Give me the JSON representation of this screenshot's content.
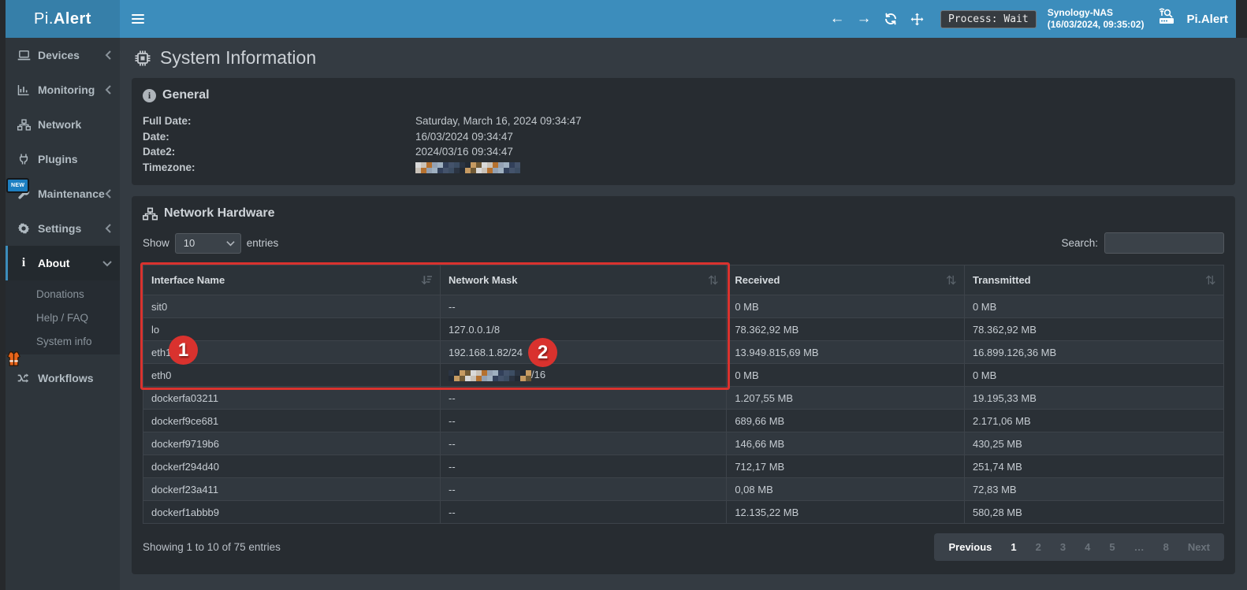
{
  "colors": {
    "navbar_blue": "#3c8dbc",
    "annotation_red": "#d9322e"
  },
  "navbar": {
    "brand_prefix": "Pi.",
    "brand_bold": "Alert",
    "process_badge": "Process: Wait",
    "host_name": "Synology-NAS",
    "host_timestamp": "(16/03/2024, 09:35:02)",
    "right_brand": "Pi.Alert"
  },
  "sidebar": {
    "items": [
      {
        "label": "Devices"
      },
      {
        "label": "Monitoring"
      },
      {
        "label": "Network"
      },
      {
        "label": "Plugins"
      },
      {
        "label": "Maintenance",
        "badge": "NEW"
      },
      {
        "label": "Settings"
      },
      {
        "label": "About"
      },
      {
        "label": "Workflows"
      }
    ],
    "about_submenu": [
      {
        "label": "Donations"
      },
      {
        "label": "Help / FAQ"
      },
      {
        "label": "System info"
      }
    ]
  },
  "page": {
    "title": "System Information"
  },
  "general": {
    "title": "General",
    "rows": [
      {
        "label": "Full Date:",
        "value": "Saturday, March 16, 2024 09:34:47"
      },
      {
        "label": "Date:",
        "value": "16/03/2024 09:34:47"
      },
      {
        "label": "Date2:",
        "value": "2024/03/16 09:34:47"
      },
      {
        "label": "Timezone:",
        "value": "",
        "redacted": true
      }
    ]
  },
  "network_hardware": {
    "title": "Network Hardware",
    "show_label": "Show",
    "page_size": "10",
    "entries_label": "entries",
    "search_label": "Search:",
    "search_value": "",
    "table": {
      "columns": [
        "Interface Name",
        "Network Mask",
        "Received",
        "Transmitted"
      ],
      "rows": [
        {
          "interface": "sit0",
          "mask": "--",
          "received": "0 MB",
          "transmitted": "0 MB"
        },
        {
          "interface": "lo",
          "mask": "127.0.0.1/8",
          "received": "78.362,92 MB",
          "transmitted": "78.362,92 MB"
        },
        {
          "interface": "eth1",
          "mask": "192.168.1.82/24",
          "received": "13.949.815,69 MB",
          "transmitted": "16.899.126,36 MB"
        },
        {
          "interface": "eth0",
          "mask": "/16",
          "mask_redacted": true,
          "received": "0 MB",
          "transmitted": "0 MB"
        },
        {
          "interface": "dockerfa03211",
          "mask": "--",
          "received": "1.207,55 MB",
          "transmitted": "19.195,33 MB"
        },
        {
          "interface": "dockerf9ce681",
          "mask": "--",
          "received": "689,66 MB",
          "transmitted": "2.171,06 MB"
        },
        {
          "interface": "dockerf9719b6",
          "mask": "--",
          "received": "146,66 MB",
          "transmitted": "430,25 MB"
        },
        {
          "interface": "dockerf294d40",
          "mask": "--",
          "received": "712,17 MB",
          "transmitted": "251,74 MB"
        },
        {
          "interface": "dockerf23a411",
          "mask": "--",
          "received": "0,08 MB",
          "transmitted": "72,83 MB"
        },
        {
          "interface": "dockerf1abbb9",
          "mask": "--",
          "received": "12.135,22 MB",
          "transmitted": "580,28 MB"
        }
      ]
    },
    "footer": {
      "showing": "Showing 1 to 10 of 75 entries",
      "pagination": [
        "Previous",
        "1",
        "2",
        "3",
        "4",
        "5",
        "…",
        "8",
        "Next"
      ],
      "current_page": "1"
    }
  },
  "annotations": {
    "circle_one": "1",
    "circle_two": "2"
  }
}
